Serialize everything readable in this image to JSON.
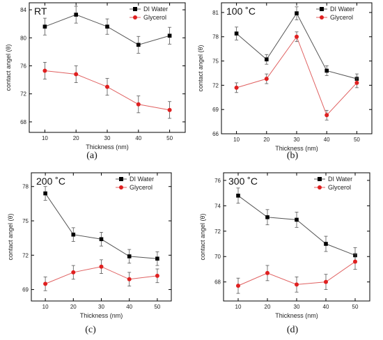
{
  "chart_data": [
    {
      "type": "line",
      "panel_label": "(a)",
      "title": "RT",
      "xlabel": "Thickness (nm)",
      "ylabel": "contact angel (θ)",
      "x": [
        10,
        20,
        30,
        40,
        50
      ],
      "xlim": [
        5,
        55
      ],
      "ylim": [
        66.5,
        85
      ],
      "xticks": [
        "10",
        "20",
        "30",
        "40",
        "50"
      ],
      "yticks": [
        68,
        72,
        76,
        80,
        84
      ],
      "legend_position": "top-right",
      "series": [
        {
          "name": "DI Water",
          "color": "#000000",
          "marker": "square",
          "values": [
            81.6,
            83.3,
            81.6,
            79.0,
            80.3
          ],
          "err": [
            1.2,
            1.2,
            1.1,
            1.2,
            1.2
          ]
        },
        {
          "name": "Glycerol",
          "color": "#e02020",
          "marker": "circle",
          "values": [
            75.3,
            74.8,
            73.0,
            70.5,
            69.7
          ],
          "err": [
            1.2,
            1.2,
            1.2,
            1.2,
            1.2
          ]
        }
      ]
    },
    {
      "type": "line",
      "panel_label": "(b)",
      "title": "100 ˚C",
      "xlabel": "Thickness (nm)",
      "ylabel": "contact angel (θ)",
      "x": [
        10,
        20,
        30,
        40,
        50
      ],
      "xlim": [
        5,
        55
      ],
      "ylim": [
        66,
        82.2
      ],
      "xticks": [
        "10",
        "20",
        "30",
        "40",
        "50"
      ],
      "yticks": [
        66,
        69,
        72,
        75,
        78,
        81
      ],
      "legend_position": "top-right",
      "series": [
        {
          "name": "DI Water",
          "color": "#000000",
          "marker": "square",
          "values": [
            78.4,
            75.2,
            80.9,
            73.8,
            72.8
          ],
          "err": [
            0.8,
            0.6,
            0.8,
            0.6,
            0.6
          ]
        },
        {
          "name": "Glycerol",
          "color": "#e02020",
          "marker": "circle",
          "values": [
            71.7,
            72.8,
            78.0,
            68.3,
            72.3
          ],
          "err": [
            0.6,
            0.6,
            0.6,
            0.6,
            0.6
          ]
        }
      ]
    },
    {
      "type": "line",
      "panel_label": "(c)",
      "title": "200 ˚C",
      "xlabel": "Thickness (nm)",
      "ylabel": "contact angel (θ)",
      "x": [
        10,
        20,
        30,
        40,
        50
      ],
      "xlim": [
        5,
        55
      ],
      "ylim": [
        68,
        79.2
      ],
      "xticks": [
        "10",
        "20",
        "30",
        "40",
        "50"
      ],
      "yticks": [
        69,
        72,
        75,
        78
      ],
      "legend_position": "top-right",
      "series": [
        {
          "name": "DI Water",
          "color": "#000000",
          "marker": "square",
          "values": [
            77.4,
            73.8,
            73.4,
            71.9,
            71.7
          ],
          "err": [
            0.6,
            0.6,
            0.6,
            0.6,
            0.6
          ]
        },
        {
          "name": "Glycerol",
          "color": "#e02020",
          "marker": "circle",
          "values": [
            69.5,
            70.5,
            71.0,
            69.9,
            70.2
          ],
          "err": [
            0.6,
            0.6,
            0.6,
            0.6,
            0.6
          ]
        }
      ]
    },
    {
      "type": "line",
      "panel_label": "(d)",
      "title": "300 ˚C",
      "xlabel": "Thickness (nm)",
      "ylabel": "contact angel (θ)",
      "x": [
        10,
        20,
        30,
        40,
        50
      ],
      "xlim": [
        5,
        55
      ],
      "ylim": [
        66.5,
        76.6
      ],
      "xticks": [
        "10",
        "20",
        "30",
        "40",
        "50"
      ],
      "yticks": [
        68,
        70,
        72,
        74,
        76
      ],
      "legend_position": "top-right",
      "series": [
        {
          "name": "DI Water",
          "color": "#000000",
          "marker": "square",
          "values": [
            74.8,
            73.1,
            72.9,
            71.0,
            70.1
          ],
          "err": [
            0.6,
            0.6,
            0.6,
            0.6,
            0.6
          ]
        },
        {
          "name": "Glycerol",
          "color": "#e02020",
          "marker": "circle",
          "values": [
            67.7,
            68.7,
            67.8,
            68.0,
            69.6
          ],
          "err": [
            0.6,
            0.6,
            0.6,
            0.6,
            0.6
          ]
        }
      ]
    }
  ]
}
